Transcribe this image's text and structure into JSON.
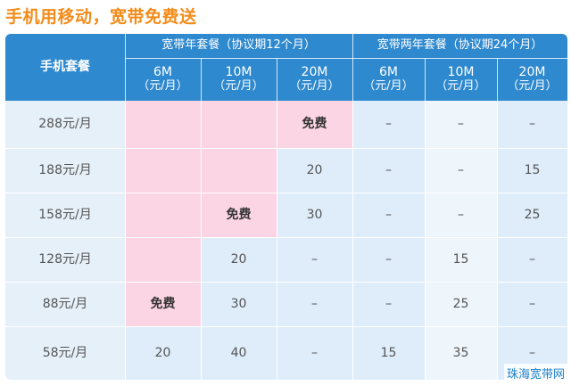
{
  "title": "手机用移动，宽带免费送",
  "header": {
    "phone_plan": "手机套餐",
    "group_1": "宽带年套餐（协议期12个月）",
    "group_2": "宽带两年套餐（协议期24个月）",
    "speeds": [
      {
        "speed": "6M",
        "unit": "（元/月）"
      },
      {
        "speed": "10M",
        "unit": "（元/月）"
      },
      {
        "speed": "20M",
        "unit": "（元/月）"
      },
      {
        "speed": "6M",
        "unit": "（元/月）"
      },
      {
        "speed": "10M",
        "unit": "（元/月）"
      },
      {
        "speed": "20M",
        "unit": "（元/月）"
      }
    ]
  },
  "rows": [
    {
      "plan": "288元/月",
      "cells": [
        "",
        "",
        "免费",
        "–",
        "–",
        "–"
      ]
    },
    {
      "plan": "188元/月",
      "cells": [
        "",
        "",
        "20",
        "–",
        "–",
        "15"
      ]
    },
    {
      "plan": "158元/月",
      "cells": [
        "",
        "免费",
        "30",
        "–",
        "–",
        "25"
      ]
    },
    {
      "plan": "128元/月",
      "cells": [
        "",
        "20",
        "–",
        "–",
        "15",
        "–"
      ]
    },
    {
      "plan": "88元/月",
      "cells": [
        "免费",
        "30",
        "–",
        "–",
        "25",
        "–"
      ]
    },
    {
      "plan": "58元/月",
      "cells": [
        "20",
        "40",
        "–",
        "15",
        "35",
        "–"
      ]
    }
  ],
  "watermark": "珠海宽带网",
  "colors": {
    "title": "#f28c1a",
    "header_bg": "#2f89cf",
    "free_zone": "#fbd5e3",
    "light_blue": "#deedf9",
    "pale_blue": "#eef5fb",
    "row_label_bg": "#e6f0f9"
  }
}
